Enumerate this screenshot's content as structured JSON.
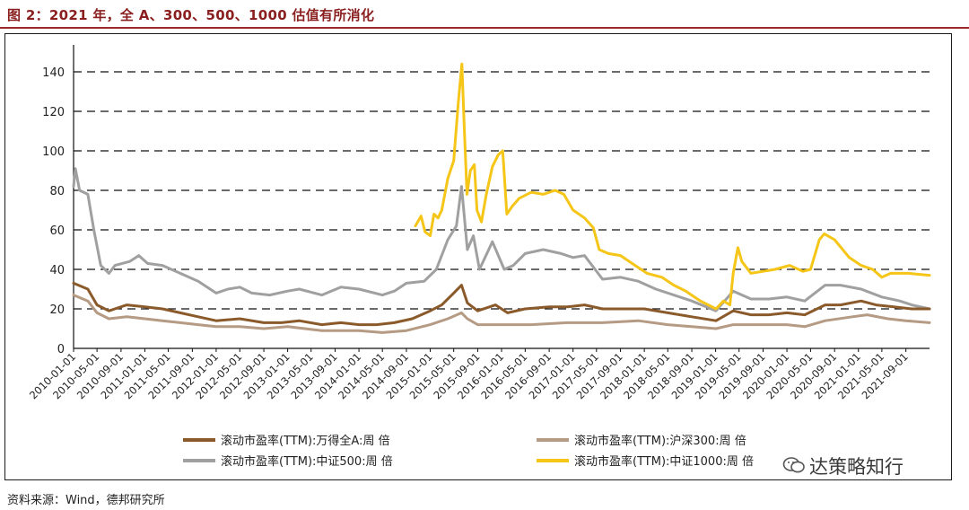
{
  "title": "图 2：2021 年，全 A、300、500、1000 估值有所消化",
  "source": "资料来源：Wind，德邦研究所",
  "watermark": "达策略知行",
  "chart_data": {
    "type": "line",
    "ylim": [
      0,
      150
    ],
    "yticks": [
      0,
      20,
      40,
      60,
      80,
      100,
      120,
      140
    ],
    "grid": "horizontal-dashed",
    "xlim": [
      "2010-01-01",
      "2021-12-31"
    ],
    "xticks": [
      "2010-01-01",
      "2010-05-01",
      "2010-09-01",
      "2011-01-01",
      "2011-05-01",
      "2011-09-01",
      "2012-01-01",
      "2012-05-01",
      "2012-09-01",
      "2013-01-01",
      "2013-05-01",
      "2013-09-01",
      "2014-01-01",
      "2014-05-01",
      "2014-09-01",
      "2015-01-01",
      "2015-05-01",
      "2015-09-01",
      "2016-01-01",
      "2016-05-01",
      "2016-09-01",
      "2017-01-01",
      "2017-05-01",
      "2017-09-01",
      "2018-01-01",
      "2018-05-01",
      "2018-09-01",
      "2019-01-01",
      "2019-05-01",
      "2019-09-01",
      "2020-01-01",
      "2020-05-01",
      "2020-09-01",
      "2021-01-01",
      "2021-05-01",
      "2021-09-01"
    ],
    "legend_position": "bottom",
    "series": [
      {
        "name": "滚动市盈率(TTM):万得全A:周 倍",
        "color": "#8B5A2B",
        "points": [
          [
            "2010-01-01",
            33
          ],
          [
            "2010-03-15",
            30
          ],
          [
            "2010-05-01",
            22
          ],
          [
            "2010-07-01",
            19
          ],
          [
            "2010-10-01",
            22
          ],
          [
            "2011-01-01",
            21
          ],
          [
            "2011-04-01",
            20
          ],
          [
            "2011-07-01",
            18
          ],
          [
            "2011-10-01",
            16
          ],
          [
            "2012-01-01",
            14
          ],
          [
            "2012-05-01",
            15
          ],
          [
            "2012-09-01",
            13
          ],
          [
            "2012-12-01",
            13
          ],
          [
            "2013-03-01",
            14
          ],
          [
            "2013-06-25",
            12
          ],
          [
            "2013-10-01",
            13
          ],
          [
            "2014-01-01",
            12
          ],
          [
            "2014-04-01",
            12
          ],
          [
            "2014-07-01",
            13
          ],
          [
            "2014-10-01",
            15
          ],
          [
            "2015-01-01",
            19
          ],
          [
            "2015-03-01",
            22
          ],
          [
            "2015-05-01",
            28
          ],
          [
            "2015-06-10",
            32
          ],
          [
            "2015-07-10",
            23
          ],
          [
            "2015-09-01",
            19
          ],
          [
            "2015-12-01",
            22
          ],
          [
            "2016-02-01",
            18
          ],
          [
            "2016-05-01",
            20
          ],
          [
            "2016-09-01",
            21
          ],
          [
            "2016-12-01",
            21
          ],
          [
            "2017-03-01",
            22
          ],
          [
            "2017-06-01",
            20
          ],
          [
            "2017-09-01",
            20
          ],
          [
            "2018-01-01",
            20
          ],
          [
            "2018-05-01",
            18
          ],
          [
            "2018-09-01",
            16
          ],
          [
            "2019-01-03",
            14
          ],
          [
            "2019-04-01",
            19
          ],
          [
            "2019-07-01",
            17
          ],
          [
            "2019-10-01",
            17
          ],
          [
            "2020-01-01",
            18
          ],
          [
            "2020-04-01",
            17
          ],
          [
            "2020-07-15",
            22
          ],
          [
            "2020-10-01",
            22
          ],
          [
            "2021-01-15",
            24
          ],
          [
            "2021-04-01",
            22
          ],
          [
            "2021-07-01",
            21
          ],
          [
            "2021-10-01",
            20
          ],
          [
            "2021-12-31",
            20
          ]
        ]
      },
      {
        "name": "滚动市盈率(TTM):沪深300:周 倍",
        "color": "#B59A84",
        "points": [
          [
            "2010-01-01",
            27
          ],
          [
            "2010-03-15",
            24
          ],
          [
            "2010-05-01",
            18
          ],
          [
            "2010-07-01",
            15
          ],
          [
            "2010-10-01",
            16
          ],
          [
            "2011-01-01",
            15
          ],
          [
            "2011-04-01",
            14
          ],
          [
            "2011-07-01",
            13
          ],
          [
            "2011-10-01",
            12
          ],
          [
            "2012-01-01",
            11
          ],
          [
            "2012-05-01",
            11
          ],
          [
            "2012-09-01",
            10
          ],
          [
            "2013-01-01",
            11
          ],
          [
            "2013-06-25",
            9
          ],
          [
            "2013-10-01",
            9
          ],
          [
            "2014-01-01",
            9
          ],
          [
            "2014-05-01",
            8
          ],
          [
            "2014-09-01",
            9
          ],
          [
            "2015-01-01",
            12
          ],
          [
            "2015-04-01",
            15
          ],
          [
            "2015-06-10",
            18
          ],
          [
            "2015-07-10",
            15
          ],
          [
            "2015-09-01",
            12
          ],
          [
            "2016-01-01",
            12
          ],
          [
            "2016-06-01",
            12
          ],
          [
            "2016-12-01",
            13
          ],
          [
            "2017-06-01",
            13
          ],
          [
            "2017-12-01",
            14
          ],
          [
            "2018-05-01",
            12
          ],
          [
            "2018-09-01",
            11
          ],
          [
            "2019-01-03",
            10
          ],
          [
            "2019-04-01",
            12
          ],
          [
            "2019-09-01",
            12
          ],
          [
            "2020-01-01",
            12
          ],
          [
            "2020-04-01",
            11
          ],
          [
            "2020-07-15",
            14
          ],
          [
            "2020-12-01",
            16
          ],
          [
            "2021-02-15",
            17
          ],
          [
            "2021-06-01",
            15
          ],
          [
            "2021-09-01",
            14
          ],
          [
            "2021-12-31",
            13
          ]
        ]
      },
      {
        "name": "滚动市盈率(TTM):中证500:周 倍",
        "color": "#A0A0A0",
        "points": [
          [
            "2010-01-01",
            82
          ],
          [
            "2010-01-10",
            91
          ],
          [
            "2010-02-01",
            80
          ],
          [
            "2010-03-15",
            78
          ],
          [
            "2010-04-15",
            60
          ],
          [
            "2010-05-20",
            42
          ],
          [
            "2010-07-01",
            38
          ],
          [
            "2010-08-01",
            42
          ],
          [
            "2010-10-15",
            44
          ],
          [
            "2010-12-01",
            47
          ],
          [
            "2011-01-15",
            43
          ],
          [
            "2011-04-01",
            42
          ],
          [
            "2011-07-01",
            38
          ],
          [
            "2011-10-01",
            34
          ],
          [
            "2012-01-01",
            28
          ],
          [
            "2012-03-01",
            30
          ],
          [
            "2012-05-01",
            31
          ],
          [
            "2012-07-01",
            28
          ],
          [
            "2012-10-01",
            27
          ],
          [
            "2013-01-01",
            29
          ],
          [
            "2013-03-01",
            30
          ],
          [
            "2013-06-25",
            27
          ],
          [
            "2013-10-01",
            31
          ],
          [
            "2014-01-01",
            30
          ],
          [
            "2014-05-01",
            27
          ],
          [
            "2014-07-01",
            29
          ],
          [
            "2014-09-01",
            33
          ],
          [
            "2014-12-01",
            34
          ],
          [
            "2015-02-01",
            40
          ],
          [
            "2015-04-01",
            55
          ],
          [
            "2015-05-15",
            62
          ],
          [
            "2015-06-10",
            82
          ],
          [
            "2015-07-10",
            50
          ],
          [
            "2015-08-10",
            57
          ],
          [
            "2015-09-10",
            40
          ],
          [
            "2015-11-15",
            54
          ],
          [
            "2016-01-15",
            40
          ],
          [
            "2016-03-01",
            42
          ],
          [
            "2016-05-01",
            48
          ],
          [
            "2016-08-01",
            50
          ],
          [
            "2016-11-01",
            48
          ],
          [
            "2017-01-01",
            46
          ],
          [
            "2017-03-01",
            47
          ],
          [
            "2017-06-01",
            35
          ],
          [
            "2017-09-01",
            36
          ],
          [
            "2017-12-01",
            34
          ],
          [
            "2018-03-01",
            30
          ],
          [
            "2018-06-01",
            27
          ],
          [
            "2018-09-01",
            24
          ],
          [
            "2019-01-03",
            19
          ],
          [
            "2019-04-01",
            29
          ],
          [
            "2019-07-01",
            25
          ],
          [
            "2019-10-01",
            25
          ],
          [
            "2020-01-01",
            26
          ],
          [
            "2020-04-01",
            24
          ],
          [
            "2020-07-15",
            32
          ],
          [
            "2020-10-01",
            32
          ],
          [
            "2021-01-15",
            30
          ],
          [
            "2021-05-01",
            26
          ],
          [
            "2021-08-01",
            24
          ],
          [
            "2021-10-01",
            22
          ],
          [
            "2021-12-31",
            20
          ]
        ]
      },
      {
        "name": "滚动市盈率(TTM):中证1000:周 倍",
        "color": "#F5C518",
        "points": [
          [
            "2014-10-17",
            62
          ],
          [
            "2014-11-15",
            67
          ],
          [
            "2014-12-05",
            59
          ],
          [
            "2015-01-01",
            57
          ],
          [
            "2015-01-20",
            68
          ],
          [
            "2015-02-10",
            66
          ],
          [
            "2015-03-01",
            70
          ],
          [
            "2015-04-01",
            86
          ],
          [
            "2015-05-01",
            95
          ],
          [
            "2015-05-25",
            125
          ],
          [
            "2015-06-12",
            144
          ],
          [
            "2015-06-25",
            110
          ],
          [
            "2015-07-08",
            78
          ],
          [
            "2015-07-25",
            90
          ],
          [
            "2015-08-15",
            93
          ],
          [
            "2015-08-28",
            70
          ],
          [
            "2015-09-20",
            64
          ],
          [
            "2015-10-15",
            78
          ],
          [
            "2015-11-15",
            92
          ],
          [
            "2015-12-15",
            98
          ],
          [
            "2016-01-07",
            100
          ],
          [
            "2016-01-28",
            68
          ],
          [
            "2016-02-25",
            72
          ],
          [
            "2016-04-01",
            76
          ],
          [
            "2016-06-01",
            79
          ],
          [
            "2016-08-01",
            78
          ],
          [
            "2016-10-01",
            80
          ],
          [
            "2016-11-15",
            78
          ],
          [
            "2017-01-01",
            70
          ],
          [
            "2017-03-01",
            66
          ],
          [
            "2017-04-15",
            61
          ],
          [
            "2017-05-15",
            50
          ],
          [
            "2017-07-01",
            48
          ],
          [
            "2017-09-01",
            47
          ],
          [
            "2017-11-15",
            42
          ],
          [
            "2018-01-15",
            38
          ],
          [
            "2018-04-01",
            36
          ],
          [
            "2018-06-01",
            32
          ],
          [
            "2018-08-01",
            29
          ],
          [
            "2018-10-15",
            24
          ],
          [
            "2019-01-03",
            20
          ],
          [
            "2019-02-10",
            24
          ],
          [
            "2019-03-15",
            22
          ],
          [
            "2019-04-01",
            38
          ],
          [
            "2019-04-25",
            51
          ],
          [
            "2019-05-15",
            44
          ],
          [
            "2019-07-01",
            38
          ],
          [
            "2019-09-01",
            39
          ],
          [
            "2019-11-01",
            40
          ],
          [
            "2020-01-15",
            42
          ],
          [
            "2020-03-23",
            39
          ],
          [
            "2020-05-01",
            40
          ],
          [
            "2020-06-15",
            55
          ],
          [
            "2020-07-10",
            58
          ],
          [
            "2020-09-01",
            55
          ],
          [
            "2020-11-15",
            46
          ],
          [
            "2021-01-15",
            42
          ],
          [
            "2021-03-15",
            40
          ],
          [
            "2021-05-01",
            36
          ],
          [
            "2021-06-15",
            38
          ],
          [
            "2021-09-15",
            38
          ],
          [
            "2021-12-31",
            37
          ]
        ]
      }
    ]
  }
}
